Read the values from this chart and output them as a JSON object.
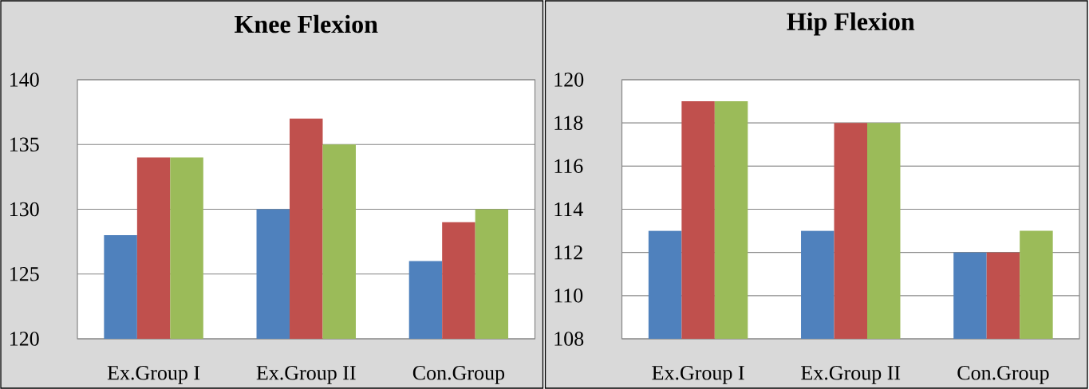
{
  "chart_data": [
    {
      "type": "bar",
      "title": "Knee Flexion",
      "categories": [
        "Ex.Group I",
        "Ex.Group II",
        "Con.Group"
      ],
      "series": [
        {
          "color": "#4f81bd",
          "values": [
            128,
            130,
            126
          ]
        },
        {
          "color": "#c0504d",
          "values": [
            134,
            137,
            129
          ]
        },
        {
          "color": "#9bbb59",
          "values": [
            134,
            135,
            130
          ]
        }
      ],
      "ylim": [
        120,
        140
      ],
      "yticks": [
        120,
        125,
        130,
        135,
        140
      ],
      "grid": "y"
    },
    {
      "type": "bar",
      "title": "Hip Flexion",
      "categories": [
        "Ex.Group I",
        "Ex.Group II",
        "Con.Group"
      ],
      "series": [
        {
          "color": "#4f81bd",
          "values": [
            113,
            113,
            112
          ]
        },
        {
          "color": "#c0504d",
          "values": [
            119,
            118,
            112
          ]
        },
        {
          "color": "#9bbb59",
          "values": [
            119,
            118,
            113
          ]
        }
      ],
      "ylim": [
        108,
        120
      ],
      "yticks": [
        108,
        110,
        112,
        114,
        116,
        118,
        120
      ],
      "grid": "y"
    }
  ]
}
